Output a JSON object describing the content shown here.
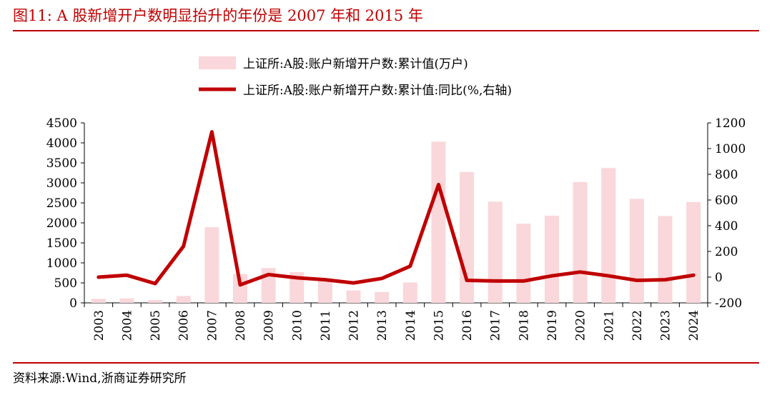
{
  "figure": {
    "title": "图11:   A 股新增开户数明显抬升的年份是 2007 年和 2015 年",
    "source": "资料来源:Wind,浙商证券研究所"
  },
  "colors": {
    "accent": "#c00000",
    "bar": "#f9d7da",
    "line": "#c00000"
  },
  "chart_data": {
    "type": "bar",
    "categories": [
      "2003",
      "2004",
      "2005",
      "2006",
      "2007",
      "2008",
      "2009",
      "2010",
      "2011",
      "2012",
      "2013",
      "2014",
      "2015",
      "2016",
      "2017",
      "2018",
      "2019",
      "2020",
      "2021",
      "2022",
      "2023",
      "2024"
    ],
    "series": [
      {
        "name": "上证所:A股:账户新增开户数:累计值(万户)",
        "type": "bar",
        "axis": "left",
        "values": [
          100,
          110,
          70,
          170,
          1890,
          720,
          870,
          770,
          590,
          310,
          270,
          510,
          4030,
          3270,
          2530,
          1980,
          2180,
          3020,
          3370,
          2600,
          2170,
          2520
        ]
      },
      {
        "name": "上证所:A股:账户新增开户数:累计值:同比(%,右轴)",
        "type": "line",
        "axis": "right",
        "values": [
          0,
          15,
          -50,
          240,
          1130,
          -60,
          20,
          -5,
          -20,
          -45,
          -10,
          85,
          720,
          -25,
          -30,
          -30,
          10,
          40,
          10,
          -25,
          -20,
          15
        ]
      }
    ],
    "y_left": {
      "ylim": [
        0,
        4500
      ],
      "ticks": [
        "0",
        "500",
        "1000",
        "1500",
        "2000",
        "2500",
        "3000",
        "3500",
        "4000",
        "4500"
      ]
    },
    "y_right": {
      "ylim": [
        -200,
        1200
      ],
      "ticks": [
        "-200",
        "0",
        "200",
        "400",
        "600",
        "800",
        "1000",
        "1200"
      ]
    },
    "legend": "top-center",
    "grid": false
  }
}
